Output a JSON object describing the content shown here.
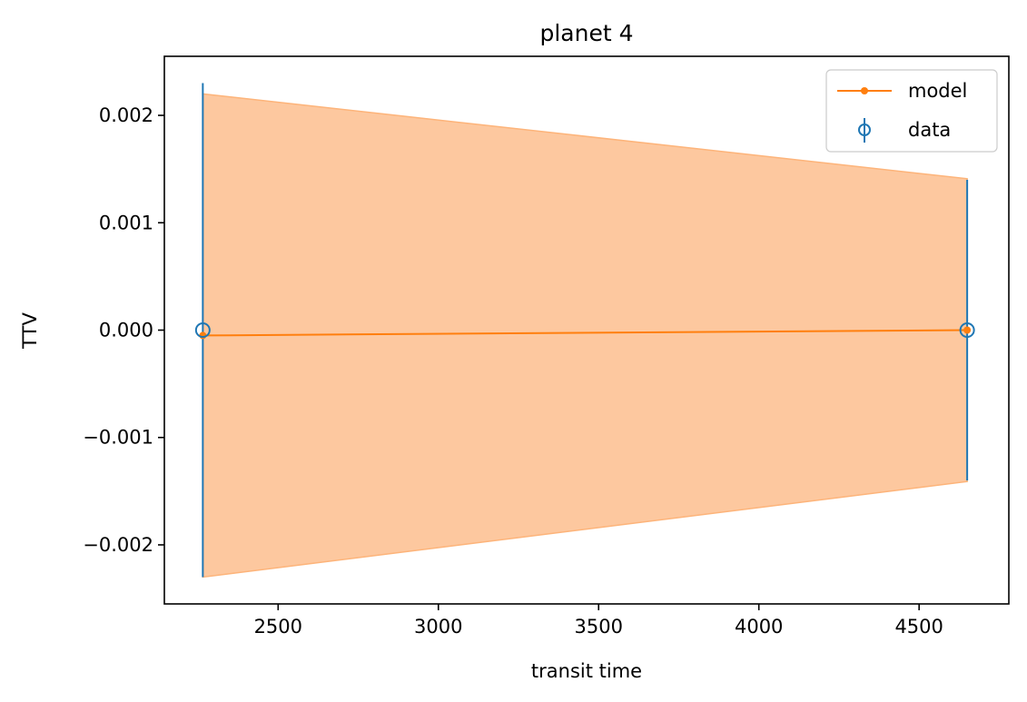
{
  "chart_data": {
    "type": "line",
    "title": "planet 4",
    "xlabel": "transit time",
    "ylabel": "TTV",
    "xlim": [
      2145,
      4780
    ],
    "ylim": [
      -0.00255,
      0.00255
    ],
    "xticks": [
      2500,
      3000,
      3500,
      4000,
      4500
    ],
    "xtick_labels": [
      "2500",
      "3000",
      "3500",
      "4000",
      "4500"
    ],
    "yticks": [
      -0.002,
      -0.001,
      0.0,
      0.001,
      0.002
    ],
    "ytick_labels": [
      "−0.002",
      "−0.001",
      "0.000",
      "0.001",
      "0.002"
    ],
    "grid": false,
    "legend_position": "top-right",
    "series": [
      {
        "name": "model",
        "kind": "line",
        "color": "#ff7f0e",
        "x": [
          2265,
          4650
        ],
        "y": [
          -5e-05,
          0.0
        ],
        "band_lower": [
          -0.0023,
          -0.00141
        ],
        "band_upper": [
          0.0022,
          0.00141
        ],
        "band_color": "#fdc89f"
      },
      {
        "name": "data",
        "kind": "errorbar",
        "color": "#1f77b4",
        "x": [
          2265,
          4650
        ],
        "y": [
          0.0,
          0.0
        ],
        "yerr": [
          0.0023,
          0.0014
        ]
      }
    ]
  }
}
